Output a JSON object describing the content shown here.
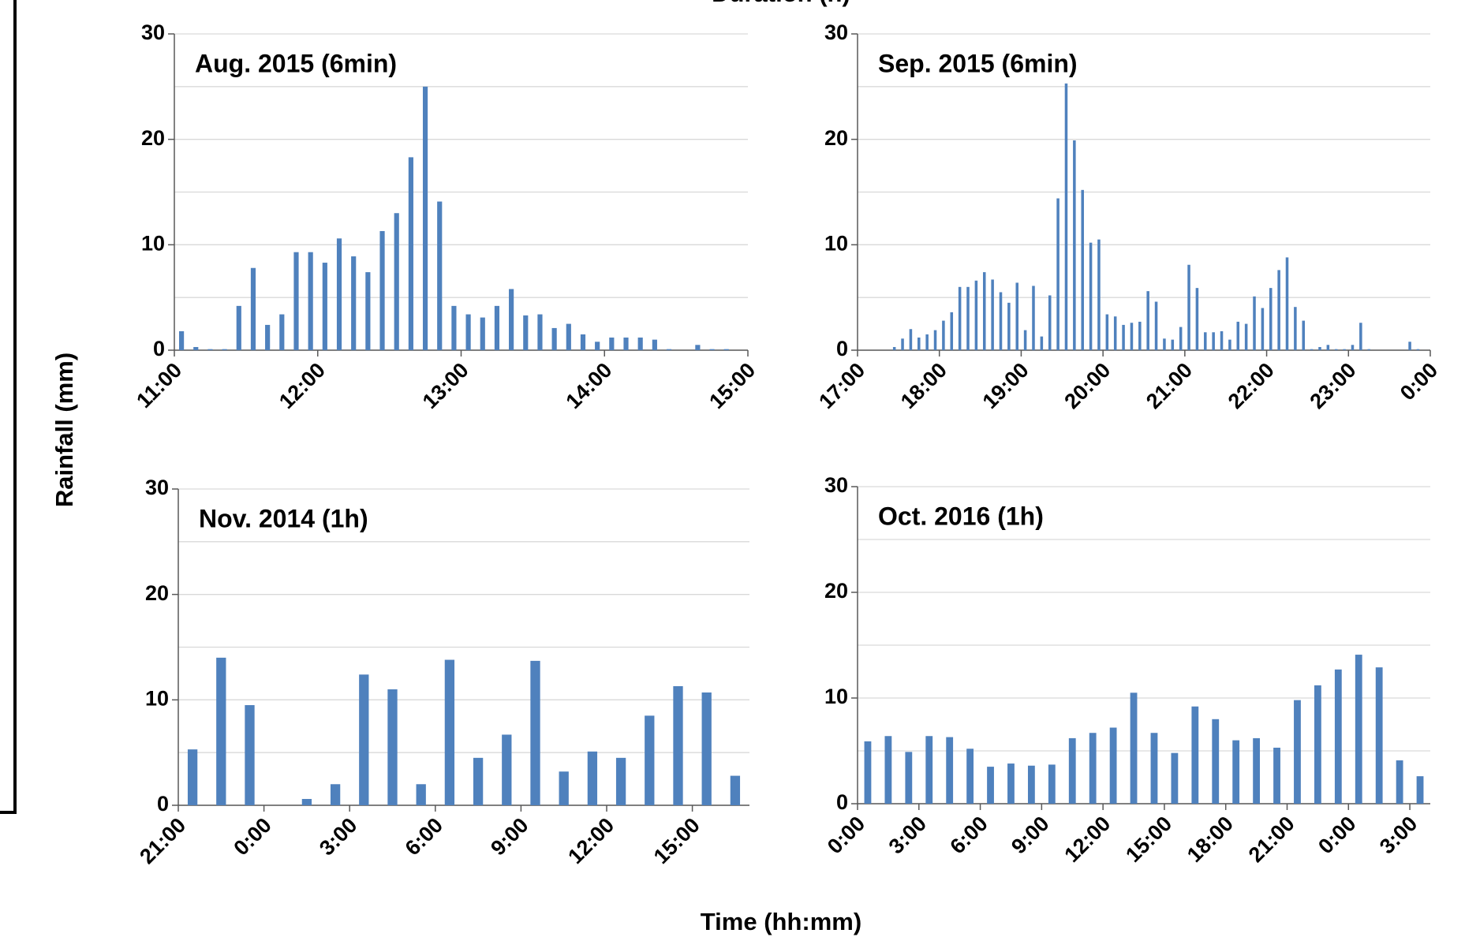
{
  "header": "Duration (h)",
  "ylabel": "Rainfall (mm)",
  "xlabel": "Time (hh:mm)",
  "chart_data": [
    {
      "type": "bar",
      "title": "Aug. 2015 (6min)",
      "color": "#4f81bd",
      "grid": true,
      "x": [
        11.05,
        11.15,
        11.25,
        11.35,
        11.45,
        11.55,
        11.65,
        11.75,
        11.85,
        11.95,
        12.05,
        12.15,
        12.25,
        12.35,
        12.45,
        12.55,
        12.65,
        12.75,
        12.85,
        12.95,
        13.05,
        13.15,
        13.25,
        13.35,
        13.45,
        13.55,
        13.65,
        13.75,
        13.85,
        13.95,
        14.05,
        14.15,
        14.25,
        14.35,
        14.45,
        14.55,
        14.65,
        14.75,
        14.85,
        14.95
      ],
      "values": [
        1.8,
        0.3,
        0.1,
        0.1,
        4.2,
        7.8,
        2.4,
        3.4,
        9.3,
        9.3,
        8.3,
        10.6,
        8.9,
        7.4,
        11.3,
        13.0,
        18.3,
        25.0,
        14.1,
        4.2,
        3.4,
        3.1,
        4.2,
        5.8,
        3.3,
        3.4,
        2.1,
        2.5,
        1.5,
        0.8,
        1.2,
        1.2,
        1.2,
        1.0,
        0.1,
        0,
        0.5,
        0.1,
        0.1,
        0
      ],
      "xlim": [
        11,
        15
      ],
      "xticks": [
        {
          "value": 11,
          "label": "11:00"
        },
        {
          "value": 12,
          "label": "12:00"
        },
        {
          "value": 13,
          "label": "13:00"
        },
        {
          "value": 14,
          "label": "14:00"
        },
        {
          "value": 15,
          "label": "15:00"
        }
      ],
      "ylim": [
        0,
        30
      ],
      "yticks": [
        0,
        10,
        20,
        30
      ],
      "minor_yticks": [
        5,
        15,
        25
      ]
    },
    {
      "type": "bar",
      "title": "Sep. 2015 (6min)",
      "color": "#4f81bd",
      "grid": true,
      "x": [
        17.05,
        17.15,
        17.25,
        17.35,
        17.45,
        17.55,
        17.65,
        17.75,
        17.85,
        17.95,
        18.05,
        18.15,
        18.25,
        18.35,
        18.45,
        18.55,
        18.65,
        18.75,
        18.85,
        18.95,
        19.05,
        19.15,
        19.25,
        19.35,
        19.45,
        19.55,
        19.65,
        19.75,
        19.85,
        19.95,
        20.05,
        20.15,
        20.25,
        20.35,
        20.45,
        20.55,
        20.65,
        20.75,
        20.85,
        20.95,
        21.05,
        21.15,
        21.25,
        21.35,
        21.45,
        21.55,
        21.65,
        21.75,
        21.85,
        21.95,
        22.05,
        22.15,
        22.25,
        22.35,
        22.45,
        22.55,
        22.65,
        22.75,
        22.85,
        22.95,
        23.05,
        23.15,
        23.25,
        23.35,
        23.45,
        23.55,
        23.65,
        23.75,
        23.85,
        23.95
      ],
      "values": [
        0,
        0,
        0,
        0,
        0.3,
        1.1,
        2.0,
        1.2,
        1.5,
        1.9,
        2.8,
        3.6,
        6.0,
        6.0,
        6.6,
        7.4,
        6.7,
        5.5,
        4.5,
        6.4,
        1.9,
        6.1,
        1.3,
        5.2,
        14.4,
        25.3,
        19.9,
        15.2,
        10.2,
        10.5,
        3.4,
        3.2,
        2.4,
        2.6,
        2.7,
        5.6,
        4.6,
        1.1,
        1.0,
        2.2,
        8.1,
        5.9,
        1.7,
        1.7,
        1.8,
        1.0,
        2.7,
        2.5,
        5.1,
        4.0,
        5.9,
        7.6,
        8.8,
        4.1,
        2.8,
        0.1,
        0.3,
        0.5,
        0.1,
        0.1,
        0.5,
        2.6,
        0.1,
        0,
        0,
        0,
        0,
        0.8,
        0.1,
        0
      ],
      "xlim": [
        17,
        24
      ],
      "xticks": [
        {
          "value": 17,
          "label": "17:00"
        },
        {
          "value": 18,
          "label": "18:00"
        },
        {
          "value": 19,
          "label": "19:00"
        },
        {
          "value": 20,
          "label": "20:00"
        },
        {
          "value": 21,
          "label": "21:00"
        },
        {
          "value": 22,
          "label": "22:00"
        },
        {
          "value": 23,
          "label": "23:00"
        },
        {
          "value": 24,
          "label": "0:00"
        }
      ],
      "ylim": [
        0,
        30
      ],
      "yticks": [
        0,
        10,
        20,
        30
      ],
      "minor_yticks": [
        5,
        15,
        25
      ]
    },
    {
      "type": "bar",
      "title": "Nov. 2014 (1h)",
      "color": "#4f81bd",
      "grid": true,
      "x": [
        21.5,
        22.5,
        23.5,
        24.5,
        25.5,
        26.5,
        27.5,
        28.5,
        29.5,
        30.5,
        31.5,
        32.5,
        33.5,
        34.5,
        35.5,
        36.5,
        37.5,
        38.5,
        39.5,
        40.5
      ],
      "values": [
        5.3,
        14.0,
        9.5,
        0,
        0.6,
        2.0,
        12.4,
        11.0,
        2.0,
        13.8,
        4.5,
        6.7,
        13.7,
        3.2,
        5.1,
        4.5,
        8.5,
        11.3,
        10.7,
        2.8
      ],
      "xlim": [
        21,
        41
      ],
      "xticks": [
        {
          "value": 21,
          "label": "21:00"
        },
        {
          "value": 24,
          "label": "0:00"
        },
        {
          "value": 27,
          "label": "3:00"
        },
        {
          "value": 30,
          "label": "6:00"
        },
        {
          "value": 33,
          "label": "9:00"
        },
        {
          "value": 36,
          "label": "12:00"
        },
        {
          "value": 39,
          "label": "15:00"
        }
      ],
      "ylim": [
        0,
        30
      ],
      "yticks": [
        0,
        10,
        20,
        30
      ],
      "minor_yticks": [
        5,
        15,
        25
      ]
    },
    {
      "type": "bar",
      "title": "Oct. 2016 (1h)",
      "color": "#4f81bd",
      "grid": true,
      "x": [
        0.5,
        1.5,
        2.5,
        3.5,
        4.5,
        5.5,
        6.5,
        7.5,
        8.5,
        9.5,
        10.5,
        11.5,
        12.5,
        13.5,
        14.5,
        15.5,
        16.5,
        17.5,
        18.5,
        19.5,
        20.5,
        21.5,
        22.5,
        23.5,
        24.5,
        25.5,
        26.5,
        27.5
      ],
      "values": [
        5.9,
        6.4,
        4.9,
        6.4,
        6.3,
        5.2,
        3.5,
        3.8,
        3.6,
        3.7,
        6.2,
        6.7,
        7.2,
        10.5,
        6.7,
        4.8,
        9.2,
        8.0,
        6.0,
        6.2,
        5.3,
        9.8,
        11.2,
        12.7,
        14.1,
        12.9,
        4.1,
        2.6
      ],
      "xlim": [
        0,
        28
      ],
      "xticks": [
        {
          "value": 0,
          "label": "0:00"
        },
        {
          "value": 3,
          "label": "3:00"
        },
        {
          "value": 6,
          "label": "6:00"
        },
        {
          "value": 9,
          "label": "9:00"
        },
        {
          "value": 12,
          "label": "12:00"
        },
        {
          "value": 15,
          "label": "15:00"
        },
        {
          "value": 18,
          "label": "18:00"
        },
        {
          "value": 21,
          "label": "21:00"
        },
        {
          "value": 24,
          "label": "0:00"
        },
        {
          "value": 27,
          "label": "3:00"
        }
      ],
      "ylim": [
        0,
        30
      ],
      "yticks": [
        0,
        10,
        20,
        30
      ],
      "minor_yticks": [
        5,
        15,
        25
      ]
    }
  ]
}
